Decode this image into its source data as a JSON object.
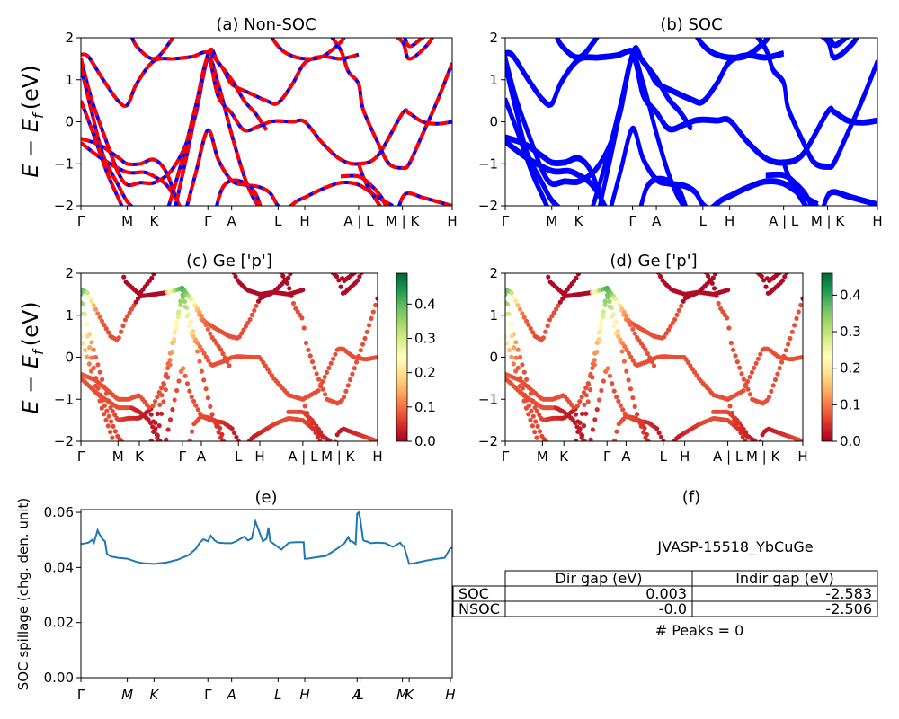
{
  "chart_data": [
    {
      "id": "a",
      "type": "line",
      "title": "(a) Non-SOC",
      "ylabel_main": "E − E",
      "ylabel_sub": "f",
      "ylabel_unit": "(eV)",
      "ylim": [
        -2,
        2
      ],
      "yticks": [
        "2",
        "1",
        "0",
        "−1",
        "−2"
      ],
      "xticks": [
        "Γ",
        "M",
        "K",
        "Γ",
        "A",
        "L",
        "H",
        "A | L",
        "M | K",
        "H"
      ],
      "kpath": [
        0,
        0.125,
        0.197,
        0.342,
        0.406,
        0.531,
        0.603,
        0.748,
        0.866,
        0.884,
        0.945,
        1.0
      ],
      "series": [
        {
          "color": "#0000ff",
          "style": "solid"
        },
        {
          "color": "#ff0000",
          "style": "dashed"
        }
      ]
    },
    {
      "id": "b",
      "type": "line",
      "title": "(b) SOC",
      "ylim": [
        -2,
        2
      ],
      "yticks": [
        "2",
        "1",
        "0",
        "−1",
        "−2"
      ],
      "xticks": [
        "Γ",
        "M",
        "K",
        "Γ",
        "A",
        "L",
        "H",
        "A | L",
        "M | K",
        "H"
      ],
      "series": [
        {
          "color": "#0000ff",
          "style": "solid"
        }
      ]
    },
    {
      "id": "c",
      "type": "scatter",
      "title": "(c)  Ge ['p']",
      "ylabel_main": "E − E",
      "ylabel_sub": "f",
      "ylabel_unit": "(eV)",
      "ylim": [
        -2,
        2
      ],
      "yticks": [
        "2",
        "1",
        "0",
        "−1",
        "−2"
      ],
      "xticks": [
        "Γ",
        "M",
        "K",
        "Γ",
        "A",
        "L",
        "H",
        "A | L",
        "M | K",
        "H"
      ],
      "colorbar": {
        "min": 0.0,
        "max": 0.49,
        "ticks": [
          "0.0",
          "0.1",
          "0.2",
          "0.3",
          "0.4"
        ],
        "colormap": "RdYlGn"
      }
    },
    {
      "id": "d",
      "type": "scatter",
      "title": "(d) Ge ['p']",
      "ylim": [
        -2,
        2
      ],
      "yticks": [
        "2",
        "1",
        "0",
        "−1",
        "−2"
      ],
      "xticks": [
        "Γ",
        "M",
        "K",
        "Γ",
        "A",
        "L",
        "H",
        "A | L",
        "M | K",
        "H"
      ],
      "colorbar": {
        "min": 0.0,
        "max": 0.46,
        "ticks": [
          "0.0",
          "0.1",
          "0.2",
          "0.3",
          "0.4"
        ],
        "colormap": "RdYlGn"
      }
    },
    {
      "id": "e",
      "type": "line",
      "title": "(e)",
      "ylabel": "SOC spillage (chg. den. unit)",
      "ylim": [
        0,
        0.061
      ],
      "yticks": [
        "0.06",
        "0.04",
        "0.02",
        "0.00"
      ],
      "ytick_values": [
        0.06,
        0.04,
        0.02,
        0.0
      ],
      "xticks": [
        "Γ",
        "M",
        "K",
        "Γ",
        "A",
        "L",
        "H",
        "A",
        "L",
        "M",
        "K",
        "H"
      ],
      "xtick_pos": [
        0,
        0.125,
        0.197,
        0.342,
        0.406,
        0.531,
        0.603,
        0.744,
        0.752,
        0.866,
        0.884,
        0.995
      ],
      "color": "#1f77b4",
      "x": [
        0,
        0.02,
        0.03,
        0.035,
        0.045,
        0.05,
        0.06,
        0.065,
        0.07,
        0.08,
        0.1,
        0.125,
        0.15,
        0.17,
        0.197,
        0.23,
        0.26,
        0.29,
        0.31,
        0.32,
        0.33,
        0.342,
        0.35,
        0.36,
        0.37,
        0.39,
        0.406,
        0.42,
        0.44,
        0.45,
        0.46,
        0.47,
        0.49,
        0.5,
        0.505,
        0.51,
        0.52,
        0.54,
        0.56,
        0.58,
        0.6,
        0.603,
        0.61,
        0.63,
        0.66,
        0.69,
        0.71,
        0.72,
        0.725,
        0.73,
        0.74,
        0.744,
        0.748,
        0.752,
        0.76,
        0.765,
        0.77,
        0.78,
        0.8,
        0.82,
        0.84,
        0.86,
        0.866,
        0.87,
        0.884,
        0.9,
        0.93,
        0.96,
        0.98,
        0.995,
        1.0
      ],
      "y": [
        0.0485,
        0.049,
        0.05,
        0.049,
        0.0535,
        0.052,
        0.05,
        0.0495,
        0.045,
        0.044,
        0.0435,
        0.0432,
        0.042,
        0.0415,
        0.0413,
        0.0418,
        0.0428,
        0.0445,
        0.0468,
        0.049,
        0.0502,
        0.0495,
        0.0515,
        0.0498,
        0.049,
        0.0488,
        0.0488,
        0.0496,
        0.0512,
        0.0498,
        0.0505,
        0.0567,
        0.0495,
        0.0505,
        0.0545,
        0.0495,
        0.0485,
        0.0465,
        0.049,
        0.0492,
        0.0492,
        0.0432,
        0.0432,
        0.0436,
        0.0442,
        0.0468,
        0.0488,
        0.051,
        0.0495,
        0.0495,
        0.0485,
        0.0595,
        0.06,
        0.058,
        0.05,
        0.0495,
        0.0495,
        0.0488,
        0.049,
        0.0488,
        0.0475,
        0.049,
        0.0478,
        0.0478,
        0.0413,
        0.0416,
        0.0425,
        0.0432,
        0.0435,
        0.047,
        0.047
      ]
    }
  ],
  "table": {
    "panel_title": "(f)",
    "caption": "JVASP-15518_YbCuGe",
    "headers": [
      "",
      "Dir gap (eV)",
      "Indir gap (eV)"
    ],
    "rows": [
      {
        "label": "SOC",
        "dir": "0.003",
        "indir": "-2.583"
      },
      {
        "label": "NSOC",
        "dir": "-0.0",
        "indir": "-2.506"
      }
    ],
    "footer": "# Peaks = 0"
  }
}
